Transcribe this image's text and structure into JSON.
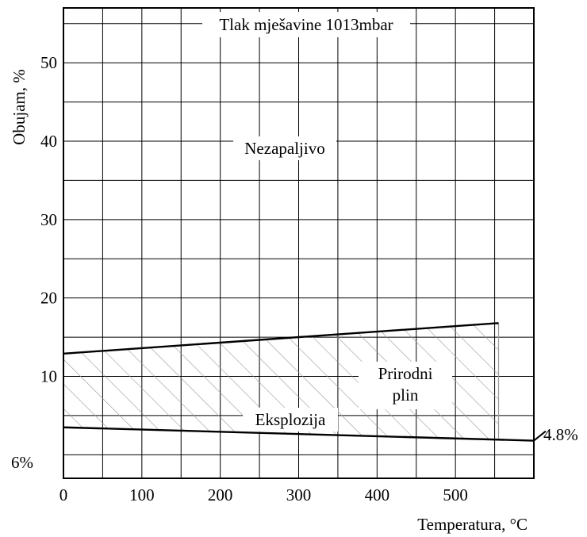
{
  "chart_data": {
    "type": "line",
    "title": "Tlak mješavine 1013mbar",
    "xlabel": "Temperatura, °C",
    "ylabel": "Obujam, %",
    "xlim": [
      0,
      600
    ],
    "ylim": [
      -3,
      57
    ],
    "x_ticks": [
      0,
      100,
      200,
      300,
      400,
      500
    ],
    "x_tick_labels": [
      "0",
      "100",
      "200",
      "300",
      "400",
      "500"
    ],
    "y_ticks": [
      10,
      20,
      30,
      40,
      50
    ],
    "y_tick_labels": [
      "10",
      "20",
      "30",
      "40",
      "50"
    ],
    "grid": true,
    "grid_x_step": 50,
    "grid_y_step": 5,
    "series": [
      {
        "name": "upper limit",
        "x": [
          0,
          555
        ],
        "y": [
          12.9,
          16.8
        ]
      },
      {
        "name": "lower limit",
        "x": [
          0,
          600
        ],
        "y": [
          3.5,
          1.8
        ]
      }
    ],
    "hatched_region": {
      "x": [
        0,
        555
      ],
      "color": "#9a9a9a"
    },
    "annotations": {
      "nonflammable": "Nezapaljivo",
      "explosion": "Eksplozija",
      "gas_line1": "Prirodni",
      "gas_line2": "plin",
      "left_value": "6%",
      "right_value": "4.8%"
    }
  }
}
